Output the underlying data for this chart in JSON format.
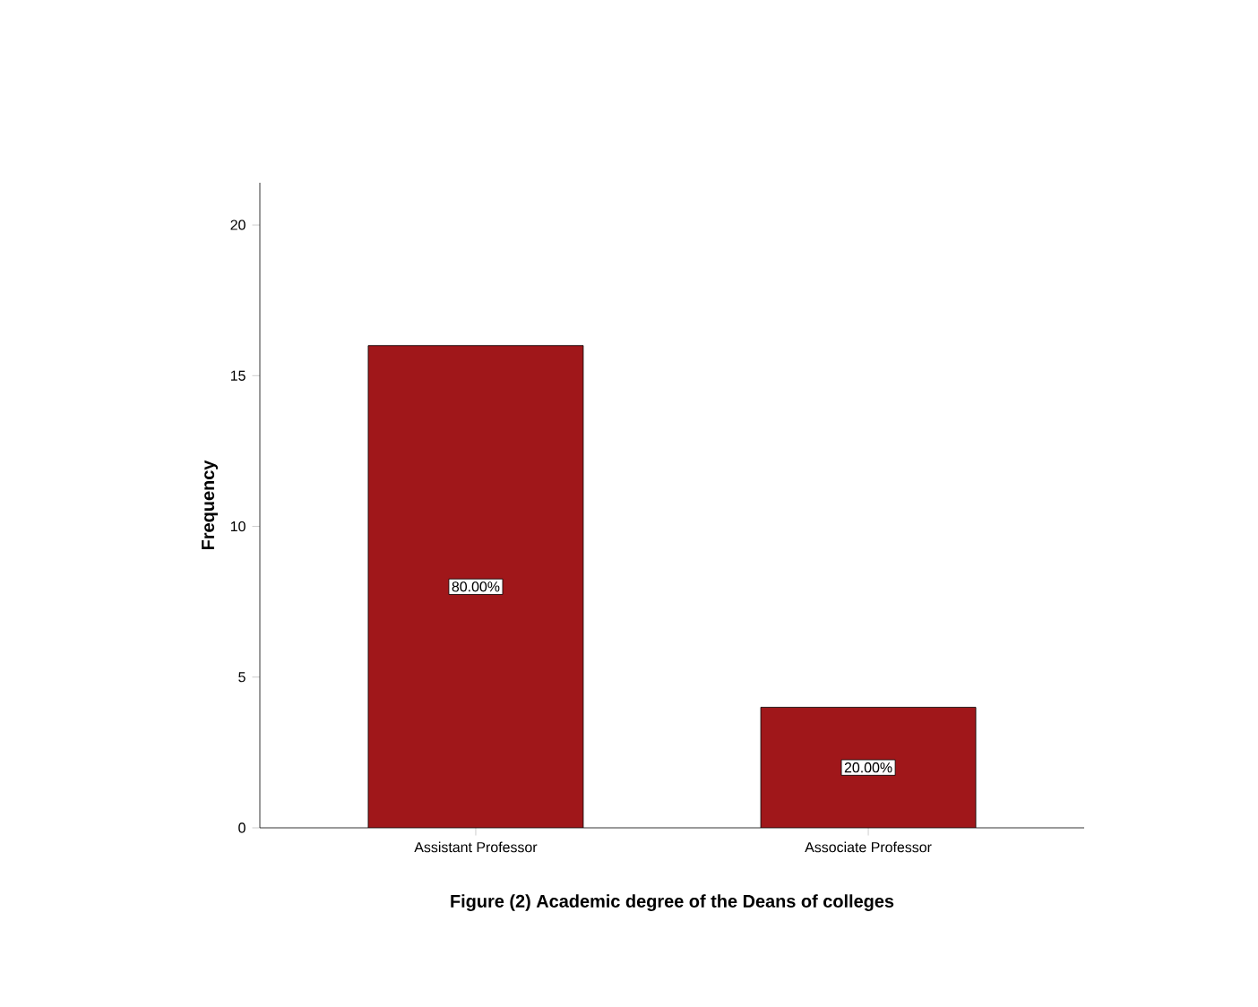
{
  "chart_data": {
    "type": "bar",
    "title": "Figure (2) Academic degree of the Deans of colleges",
    "ylabel": "Frequency",
    "categories": [
      "Assistant Professor",
      "Associate Professor"
    ],
    "values": [
      16,
      4
    ],
    "annotations": [
      "80.00%",
      "20.00%"
    ],
    "color": "#a0171a",
    "ylim": [
      0,
      21.4
    ],
    "yticks": [
      0,
      5,
      10,
      15,
      20
    ],
    "grid": false
  }
}
